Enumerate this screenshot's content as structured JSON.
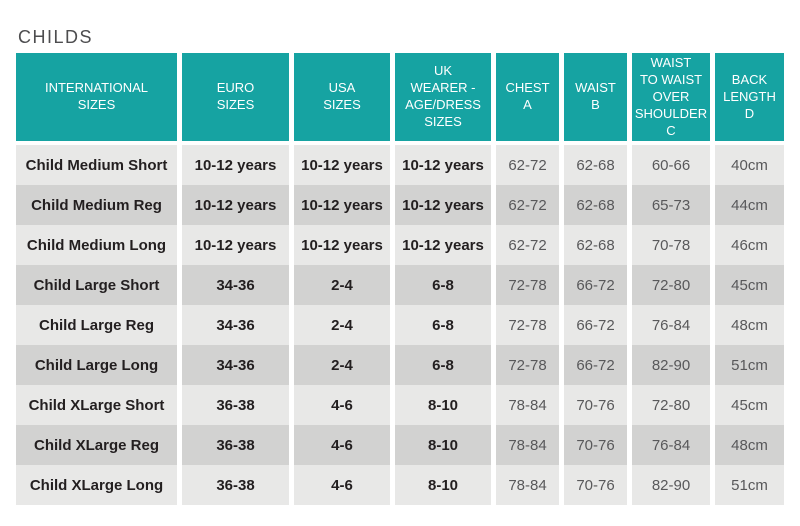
{
  "colors": {
    "header_bg": "#16a3a2",
    "header_text": "#ffffff",
    "row_light": "#e8e8e7",
    "row_dark": "#d2d2d1",
    "text_dark": "#231f20",
    "text_gray": "#58585a",
    "title_text": "#4d4d4f"
  },
  "chart_data": {
    "type": "table",
    "title": "CHILDS",
    "columns": [
      "INTERNATIONAL\nSIZES",
      "EURO\nSIZES",
      "USA\nSIZES",
      "UK\nWEARER -\nAGE/DRESS\nSIZES",
      "CHEST\nA",
      "WAIST\nB",
      "WAIST\nTO WAIST\nOVER\nSHOULDER\nC",
      "BACK\nLENGTH\nD"
    ],
    "rows": [
      [
        "Child Medium Short",
        "10-12 years",
        "10-12 years",
        "10-12 years",
        "62-72",
        "62-68",
        "60-66",
        "40cm"
      ],
      [
        "Child Medium Reg",
        "10-12 years",
        "10-12 years",
        "10-12 years",
        "62-72",
        "62-68",
        "65-73",
        "44cm"
      ],
      [
        "Child Medium Long",
        "10-12 years",
        "10-12 years",
        "10-12 years",
        "62-72",
        "62-68",
        "70-78",
        "46cm"
      ],
      [
        "Child Large Short",
        "34-36",
        "2-4",
        "6-8",
        "72-78",
        "66-72",
        "72-80",
        "45cm"
      ],
      [
        "Child Large Reg",
        "34-36",
        "2-4",
        "6-8",
        "72-78",
        "66-72",
        "76-84",
        "48cm"
      ],
      [
        "Child Large Long",
        "34-36",
        "2-4",
        "6-8",
        "72-78",
        "66-72",
        "82-90",
        "51cm"
      ],
      [
        "Child XLarge Short",
        "36-38",
        "4-6",
        "8-10",
        "78-84",
        "70-76",
        "72-80",
        "45cm"
      ],
      [
        "Child XLarge Reg",
        "36-38",
        "4-6",
        "8-10",
        "78-84",
        "70-76",
        "76-84",
        "48cm"
      ],
      [
        "Child XLarge Long",
        "36-38",
        "4-6",
        "8-10",
        "78-84",
        "70-76",
        "82-90",
        "51cm"
      ]
    ]
  }
}
